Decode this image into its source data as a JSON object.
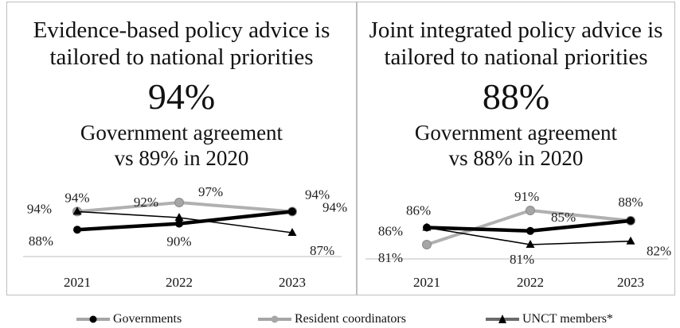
{
  "colors": {
    "governments": "#000000",
    "resident_coordinators": "#a6a6a6",
    "unct_members": "#000000"
  },
  "legend": [
    {
      "name": "Governments",
      "color": "#000000",
      "marker": "circle"
    },
    {
      "name": "Resident coordinators",
      "color": "#a6a6a6",
      "marker": "circle"
    },
    {
      "name": "UNCT members*",
      "color": "#000000",
      "marker": "triangle"
    }
  ],
  "panels": [
    {
      "title_line1": "Evidence-based policy advice is",
      "title_line2": "tailored to national priorities",
      "headline": "94%",
      "subtitle_line1": "Government agreement",
      "subtitle_line2": "vs 89% in 2020"
    },
    {
      "title_line1": "Joint integrated policy advice is",
      "title_line2": "tailored to national priorities",
      "headline": "88%",
      "subtitle_line1": "Government agreement",
      "subtitle_line2": "vs 88% in 2020"
    }
  ],
  "chart_data": [
    {
      "type": "line",
      "categories": [
        "2021",
        "2022",
        "2023"
      ],
      "ylim": [
        80,
        100
      ],
      "grid": false,
      "legend_position": "bottom",
      "series": [
        {
          "name": "Governments",
          "values": [
            88,
            90,
            94
          ],
          "labels": [
            "88%",
            "90%",
            "94%"
          ]
        },
        {
          "name": "Resident coordinators",
          "values": [
            94,
            97,
            94
          ],
          "labels": [
            "94%",
            "97%",
            "94%"
          ]
        },
        {
          "name": "UNCT members*",
          "values": [
            94,
            92,
            87
          ],
          "labels": [
            "94%",
            "92%",
            "87%"
          ]
        }
      ]
    },
    {
      "type": "line",
      "categories": [
        "2021",
        "2022",
        "2023"
      ],
      "ylim": [
        75,
        95
      ],
      "grid": false,
      "legend_position": "bottom",
      "series": [
        {
          "name": "Governments",
          "values": [
            86,
            85,
            88
          ],
          "labels": [
            "86%",
            "85%",
            "88%"
          ]
        },
        {
          "name": "Resident coordinators",
          "values": [
            81,
            91,
            88
          ],
          "labels": [
            "81%",
            "91%",
            "88%"
          ]
        },
        {
          "name": "UNCT members*",
          "values": [
            86,
            81,
            82
          ],
          "labels": [
            "86%",
            "81%",
            "82%"
          ]
        }
      ]
    }
  ]
}
